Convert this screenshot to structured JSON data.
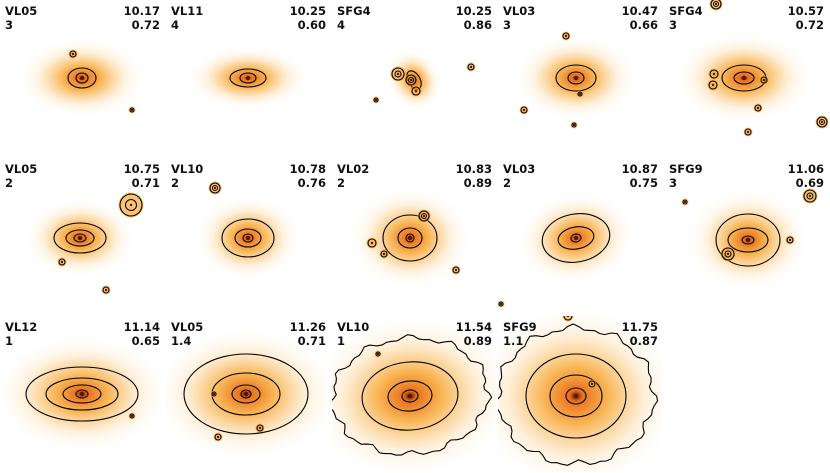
{
  "figure": {
    "panels": [
      {
        "survey": "VL05",
        "index": "3",
        "mass": "10.17",
        "ratio": "0.72"
      },
      {
        "survey": "VL11",
        "index": "4",
        "mass": "10.25",
        "ratio": "0.60"
      },
      {
        "survey": "SFG4",
        "index": "4",
        "mass": "10.25",
        "ratio": "0.86"
      },
      {
        "survey": "VL03",
        "index": "3",
        "mass": "10.47",
        "ratio": "0.66"
      },
      {
        "survey": "SFG4",
        "index": "3",
        "mass": "10.57",
        "ratio": "0.72"
      },
      {
        "survey": "VL05",
        "index": "2",
        "mass": "10.75",
        "ratio": "0.71"
      },
      {
        "survey": "VL10",
        "index": "2",
        "mass": "10.78",
        "ratio": "0.76"
      },
      {
        "survey": "VL02",
        "index": "2",
        "mass": "10.83",
        "ratio": "0.89"
      },
      {
        "survey": "VL03",
        "index": "2",
        "mass": "10.87",
        "ratio": "0.75"
      },
      {
        "survey": "SFG9",
        "index": "3",
        "mass": "11.06",
        "ratio": "0.69"
      },
      {
        "survey": "VL12",
        "index": "1",
        "mass": "11.14",
        "ratio": "0.65"
      },
      {
        "survey": "VL05",
        "index": "1.4",
        "mass": "11.26",
        "ratio": "0.71"
      },
      {
        "survey": "VL10",
        "index": "1",
        "mass": "11.54",
        "ratio": "0.89"
      },
      {
        "survey": "SFG9",
        "index": "1.1",
        "mass": "11.75",
        "ratio": "0.87"
      }
    ],
    "colors": {
      "glow_outer": "#fde7c4",
      "glow_mid": "#f7a938",
      "glow_core": "#e8701a",
      "nucleus": "#5a1400",
      "contour": "#000000"
    }
  }
}
